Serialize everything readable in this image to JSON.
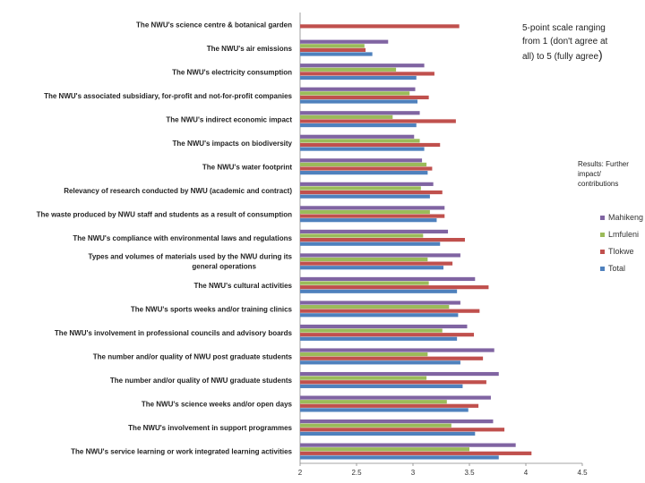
{
  "chart_data": {
    "type": "bar",
    "orientation": "horizontal",
    "xlim": [
      2,
      4.5
    ],
    "xticks": [
      "2",
      "2.5",
      "3",
      "3.5",
      "4",
      "4.5"
    ],
    "grid": false,
    "legend_position": "right",
    "categories": [
      "The NWU's science centre & botanical garden",
      "The NWU's air emissions",
      "The NWU's electricity consumption",
      "The NWU's associated subsidiary, for-profit and not-for-profit companies",
      "The NWU's indirect economic impact",
      "The NWU's impacts on biodiversity",
      "The NWU's water footprint",
      "Relevancy of research conducted by NWU (academic and contract)",
      "The waste produced by NWU staff and students as a result of consumption",
      "The NWU's compliance with environmental laws and regulations",
      "Types and volumes of materials used by the NWU during its general operations",
      "The NWU's cultural activities",
      "The NWU's sports weeks and/or training clinics",
      "The NWU's involvement in professional councils and advisory boards",
      "The number and/or quality of NWU post graduate students",
      "The number and/or quality of NWU graduate students",
      "The NWU's science weeks and/or open days",
      "The NWU's involvement in support programmes",
      "The NWU's service learning or work integrated learning activities"
    ],
    "series": [
      {
        "name": "Mahikeng",
        "color": "#8064a2",
        "values": [
          null,
          2.78,
          3.1,
          3.02,
          3.06,
          3.01,
          3.08,
          3.18,
          3.28,
          3.31,
          3.42,
          3.55,
          3.42,
          3.48,
          3.72,
          3.76,
          3.69,
          3.71,
          3.91
        ]
      },
      {
        "name": "Lmfuleni",
        "color": "#9bbb59",
        "values": [
          null,
          2.57,
          2.85,
          2.97,
          2.82,
          3.06,
          3.12,
          3.07,
          3.15,
          3.09,
          3.13,
          3.14,
          3.32,
          3.26,
          3.13,
          3.12,
          3.3,
          3.34,
          3.5
        ]
      },
      {
        "name": "Tlokwe",
        "color": "#c0504d",
        "values": [
          3.41,
          2.58,
          3.19,
          3.14,
          3.38,
          3.24,
          3.17,
          3.26,
          3.28,
          3.46,
          3.35,
          3.67,
          3.59,
          3.54,
          3.62,
          3.65,
          3.58,
          3.81,
          4.05
        ]
      },
      {
        "name": "Total",
        "color": "#4f81bd",
        "values": [
          null,
          2.64,
          3.03,
          3.04,
          3.03,
          3.1,
          3.13,
          3.15,
          3.21,
          3.24,
          3.27,
          3.39,
          3.4,
          3.39,
          3.42,
          3.44,
          3.49,
          3.55,
          3.76
        ]
      }
    ],
    "legend": [
      "Mahikeng",
      "Lmfuleni",
      "Tlokwe",
      "Total"
    ]
  },
  "notes": {
    "scale_line1": "5-point scale ranging",
    "scale_line2": "from 1 (don't agree at",
    "scale_line3": "all) to 5 (fully agree",
    "scale_paren": ")",
    "results": "Results: Further impact/ contributions"
  }
}
